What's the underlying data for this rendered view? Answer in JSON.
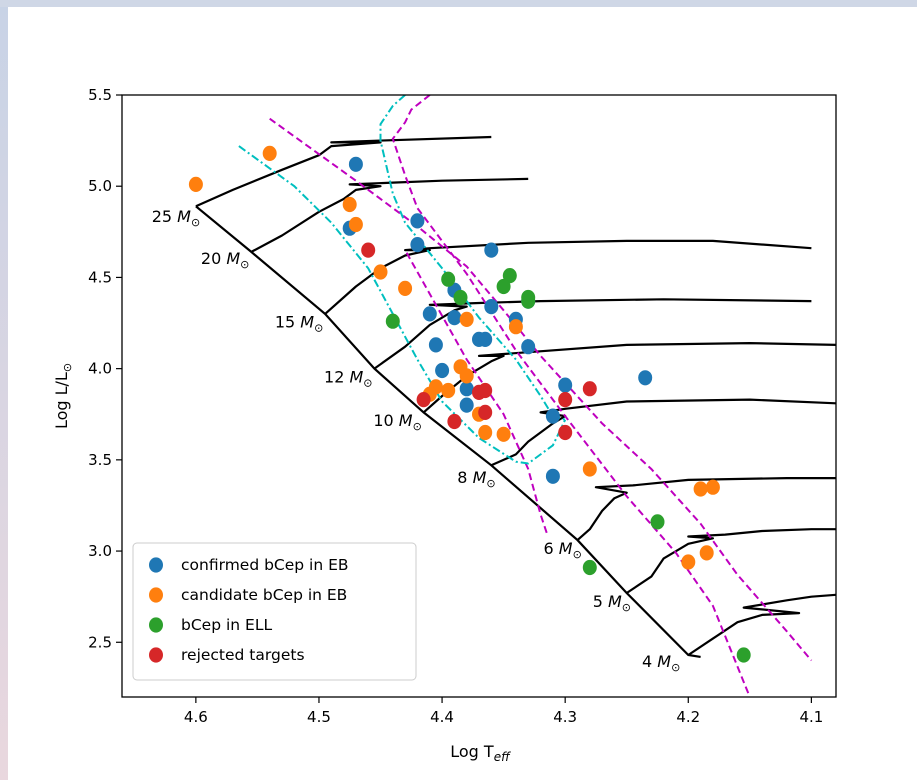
{
  "chart_data": {
    "type": "scatter",
    "xlabel": "Log T",
    "xlabel_sub": "eff",
    "ylabel": "Log L/L",
    "ylabel_sym": "⊙",
    "xlim": [
      4.66,
      4.08
    ],
    "ylim": [
      2.2,
      5.5
    ],
    "x_ticks": [
      4.6,
      4.5,
      4.4,
      4.3,
      4.2,
      4.1
    ],
    "y_ticks": [
      2.5,
      3.0,
      3.5,
      4.0,
      4.5,
      5.0,
      5.5
    ],
    "x_tick_labels": [
      "4.6",
      "4.5",
      "4.4",
      "4.3",
      "4.2",
      "4.1"
    ],
    "y_tick_labels": [
      "2.5",
      "3.0",
      "3.5",
      "4.0",
      "4.5",
      "5.0",
      "5.5"
    ],
    "legend_position": "lower-left",
    "mass_labels": [
      {
        "text": "25",
        "unit": "M",
        "sym": "⊙",
        "x": 4.59,
        "y": 4.87
      },
      {
        "text": "20",
        "unit": "M",
        "sym": "⊙",
        "x": 4.55,
        "y": 4.64
      },
      {
        "text": "15",
        "unit": "M",
        "sym": "⊙",
        "x": 4.49,
        "y": 4.29
      },
      {
        "text": "12",
        "unit": "M",
        "sym": "⊙",
        "x": 4.45,
        "y": 3.99
      },
      {
        "text": "10",
        "unit": "M",
        "sym": "⊙",
        "x": 4.41,
        "y": 3.75
      },
      {
        "text": "8",
        "unit": "M",
        "sym": "⊙",
        "x": 4.35,
        "y": 3.44
      },
      {
        "text": "6",
        "unit": "M",
        "sym": "⊙",
        "x": 4.28,
        "y": 3.05
      },
      {
        "text": "5",
        "unit": "M",
        "sym": "⊙",
        "x": 4.24,
        "y": 2.76
      },
      {
        "text": "4",
        "unit": "M",
        "sym": "⊙",
        "x": 4.2,
        "y": 2.43
      }
    ],
    "tracks": [
      {
        "mass": 25,
        "points": [
          [
            4.6,
            4.89
          ],
          [
            4.57,
            4.98
          ],
          [
            4.53,
            5.09
          ],
          [
            4.5,
            5.17
          ],
          [
            4.49,
            5.22
          ],
          [
            4.45,
            5.24
          ],
          [
            4.49,
            5.24
          ],
          [
            4.45,
            5.25
          ],
          [
            4.36,
            5.27
          ]
        ]
      },
      {
        "mass": 20,
        "points": [
          [
            4.555,
            4.64
          ],
          [
            4.53,
            4.73
          ],
          [
            4.5,
            4.86
          ],
          [
            4.48,
            4.93
          ],
          [
            4.47,
            4.98
          ],
          [
            4.45,
            5.0
          ],
          [
            4.475,
            5.01
          ],
          [
            4.44,
            5.02
          ],
          [
            4.4,
            5.03
          ],
          [
            4.33,
            5.04
          ]
        ]
      },
      {
        "mass": 15,
        "points": [
          [
            4.495,
            4.3
          ],
          [
            4.47,
            4.45
          ],
          [
            4.45,
            4.55
          ],
          [
            4.43,
            4.62
          ],
          [
            4.41,
            4.65
          ],
          [
            4.43,
            4.65
          ],
          [
            4.41,
            4.66
          ],
          [
            4.33,
            4.69
          ],
          [
            4.25,
            4.7
          ],
          [
            4.18,
            4.7
          ],
          [
            4.1,
            4.66
          ]
        ]
      },
      {
        "mass": 12,
        "points": [
          [
            4.455,
            4.0
          ],
          [
            4.43,
            4.12
          ],
          [
            4.41,
            4.24
          ],
          [
            4.39,
            4.32
          ],
          [
            4.38,
            4.34
          ],
          [
            4.41,
            4.35
          ],
          [
            4.37,
            4.36
          ],
          [
            4.32,
            4.37
          ],
          [
            4.22,
            4.38
          ],
          [
            4.1,
            4.37
          ]
        ]
      },
      {
        "mass": 10,
        "points": [
          [
            4.415,
            3.76
          ],
          [
            4.4,
            3.85
          ],
          [
            4.38,
            3.96
          ],
          [
            4.36,
            4.04
          ],
          [
            4.35,
            4.07
          ],
          [
            4.37,
            4.07
          ],
          [
            4.35,
            4.08
          ],
          [
            4.25,
            4.13
          ],
          [
            4.15,
            4.14
          ],
          [
            4.08,
            4.13
          ]
        ]
      },
      {
        "mass": 8,
        "points": [
          [
            4.36,
            3.47
          ],
          [
            4.34,
            3.53
          ],
          [
            4.33,
            3.6
          ],
          [
            4.31,
            3.7
          ],
          [
            4.3,
            3.74
          ],
          [
            4.32,
            3.76
          ],
          [
            4.3,
            3.78
          ],
          [
            4.25,
            3.82
          ],
          [
            4.15,
            3.83
          ],
          [
            4.08,
            3.81
          ]
        ]
      },
      {
        "mass": 6,
        "points": [
          [
            4.29,
            3.06
          ],
          [
            4.28,
            3.12
          ],
          [
            4.27,
            3.22
          ],
          [
            4.26,
            3.29
          ],
          [
            4.25,
            3.32
          ],
          [
            4.275,
            3.35
          ],
          [
            4.245,
            3.36
          ],
          [
            4.2,
            3.39
          ],
          [
            4.12,
            3.4
          ],
          [
            4.08,
            3.4
          ]
        ]
      },
      {
        "mass": 5,
        "points": [
          [
            4.25,
            2.77
          ],
          [
            4.23,
            2.86
          ],
          [
            4.22,
            2.96
          ],
          [
            4.2,
            3.04
          ],
          [
            4.18,
            3.07
          ],
          [
            4.2,
            3.08
          ],
          [
            4.17,
            3.09
          ],
          [
            4.14,
            3.11
          ],
          [
            4.1,
            3.12
          ],
          [
            4.08,
            3.12
          ]
        ]
      },
      {
        "mass": 4,
        "points": [
          [
            4.2,
            2.43
          ],
          [
            4.18,
            2.52
          ],
          [
            4.16,
            2.61
          ],
          [
            4.14,
            2.65
          ],
          [
            4.11,
            2.66
          ],
          [
            4.155,
            2.69
          ],
          [
            4.12,
            2.73
          ],
          [
            4.1,
            2.75
          ],
          [
            4.08,
            2.76
          ]
        ]
      }
    ],
    "zams": [
      [
        4.6,
        4.89
      ],
      [
        4.555,
        4.64
      ],
      [
        4.495,
        4.3
      ],
      [
        4.455,
        4.0
      ],
      [
        4.415,
        3.76
      ],
      [
        4.36,
        3.47
      ],
      [
        4.29,
        3.06
      ],
      [
        4.25,
        2.77
      ],
      [
        4.2,
        2.43
      ],
      [
        4.19,
        2.42
      ]
    ],
    "instability_strip_lines": [
      {
        "style": "dashed",
        "color": "#bf00bf",
        "points": [
          [
            4.54,
            5.37
          ],
          [
            4.47,
            5.03
          ],
          [
            4.42,
            4.78
          ],
          [
            4.38,
            4.56
          ],
          [
            4.35,
            4.32
          ],
          [
            4.32,
            4.07
          ],
          [
            4.27,
            3.7
          ],
          [
            4.23,
            3.45
          ],
          [
            4.19,
            3.15
          ],
          [
            4.16,
            2.87
          ],
          [
            4.12,
            2.56
          ],
          [
            4.1,
            2.4
          ]
        ]
      },
      {
        "style": "dashed",
        "color": "#bf00bf",
        "points": [
          [
            4.41,
            5.5
          ],
          [
            4.425,
            5.42
          ],
          [
            4.43,
            5.35
          ],
          [
            4.44,
            5.26
          ],
          [
            4.43,
            5.06
          ],
          [
            4.42,
            4.88
          ],
          [
            4.38,
            4.52
          ],
          [
            4.34,
            4.1
          ],
          [
            4.3,
            3.74
          ],
          [
            4.25,
            3.3
          ],
          [
            4.21,
            2.99
          ],
          [
            4.18,
            2.7
          ],
          [
            4.15,
            2.2
          ]
        ]
      },
      {
        "style": "dashed",
        "color": "#bf00bf",
        "points": [
          [
            4.315,
            3.1
          ],
          [
            4.32,
            3.2
          ],
          [
            4.33,
            3.45
          ],
          [
            4.35,
            3.75
          ],
          [
            4.38,
            4.05
          ],
          [
            4.43,
            4.65
          ]
        ]
      },
      {
        "style": "dashdot",
        "color": "#00bfbf",
        "points": [
          [
            4.565,
            5.22
          ],
          [
            4.52,
            5.0
          ],
          [
            4.49,
            4.8
          ],
          [
            4.46,
            4.55
          ],
          [
            4.44,
            4.3
          ],
          [
            4.42,
            4.05
          ],
          [
            4.4,
            3.82
          ],
          [
            4.37,
            3.62
          ],
          [
            4.34,
            3.49
          ],
          [
            4.33,
            3.48
          ],
          [
            4.31,
            3.58
          ],
          [
            4.3,
            3.72
          ]
        ]
      },
      {
        "style": "dashdot",
        "color": "#00bfbf",
        "points": [
          [
            4.43,
            5.5
          ],
          [
            4.44,
            5.44
          ],
          [
            4.45,
            5.34
          ],
          [
            4.45,
            5.25
          ],
          [
            4.44,
            4.96
          ],
          [
            4.43,
            4.8
          ],
          [
            4.4,
            4.55
          ],
          [
            4.37,
            4.28
          ],
          [
            4.34,
            4.05
          ],
          [
            4.32,
            3.85
          ],
          [
            4.31,
            3.74
          ],
          [
            4.3,
            3.72
          ]
        ]
      }
    ],
    "series": [
      {
        "name": "confirmed bCep in EB",
        "color": "#1f77b4",
        "points": [
          [
            4.47,
            5.12
          ],
          [
            4.42,
            4.81
          ],
          [
            4.475,
            4.77
          ],
          [
            4.42,
            4.68
          ],
          [
            4.36,
            4.65
          ],
          [
            4.39,
            4.43
          ],
          [
            4.36,
            4.34
          ],
          [
            4.41,
            4.3
          ],
          [
            4.39,
            4.28
          ],
          [
            4.34,
            4.27
          ],
          [
            4.33,
            4.37
          ],
          [
            4.405,
            4.13
          ],
          [
            4.37,
            4.16
          ],
          [
            4.365,
            4.16
          ],
          [
            4.33,
            4.12
          ],
          [
            4.4,
            3.99
          ],
          [
            4.38,
            3.89
          ],
          [
            4.38,
            3.8
          ],
          [
            4.3,
            3.91
          ],
          [
            4.31,
            3.74
          ],
          [
            4.235,
            3.95
          ],
          [
            4.31,
            3.41
          ]
        ]
      },
      {
        "name": "candidate bCep in EB",
        "color": "#ff7f0e",
        "points": [
          [
            4.6,
            5.01
          ],
          [
            4.54,
            5.18
          ],
          [
            4.475,
            4.9
          ],
          [
            4.47,
            4.79
          ],
          [
            4.45,
            4.53
          ],
          [
            4.43,
            4.44
          ],
          [
            4.38,
            4.27
          ],
          [
            4.34,
            4.23
          ],
          [
            4.385,
            4.01
          ],
          [
            4.38,
            3.96
          ],
          [
            4.405,
            3.9
          ],
          [
            4.395,
            3.88
          ],
          [
            4.41,
            3.86
          ],
          [
            4.37,
            3.75
          ],
          [
            4.365,
            3.65
          ],
          [
            4.35,
            3.64
          ],
          [
            4.28,
            3.45
          ],
          [
            4.19,
            3.34
          ],
          [
            4.18,
            3.35
          ],
          [
            4.185,
            2.99
          ],
          [
            4.2,
            2.94
          ]
        ]
      },
      {
        "name": "bCep in ELL",
        "color": "#2ca02c",
        "points": [
          [
            4.44,
            4.26
          ],
          [
            4.395,
            4.49
          ],
          [
            4.385,
            4.39
          ],
          [
            4.345,
            4.51
          ],
          [
            4.35,
            4.45
          ],
          [
            4.33,
            4.39
          ],
          [
            4.33,
            4.37
          ],
          [
            4.225,
            3.16
          ],
          [
            4.28,
            2.91
          ],
          [
            4.155,
            2.43
          ]
        ]
      },
      {
        "name": "rejected targets",
        "color": "#d62728",
        "points": [
          [
            4.46,
            4.65
          ],
          [
            4.415,
            3.83
          ],
          [
            4.37,
            3.87
          ],
          [
            4.365,
            3.88
          ],
          [
            4.365,
            3.76
          ],
          [
            4.39,
            3.71
          ],
          [
            4.28,
            3.89
          ],
          [
            4.3,
            3.83
          ],
          [
            4.3,
            3.65
          ]
        ]
      }
    ]
  }
}
